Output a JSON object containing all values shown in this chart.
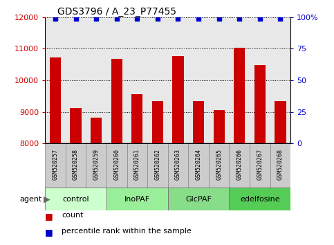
{
  "title": "GDS3796 / A_23_P77455",
  "samples": [
    "GSM520257",
    "GSM520258",
    "GSM520259",
    "GSM520260",
    "GSM520261",
    "GSM520262",
    "GSM520263",
    "GSM520264",
    "GSM520265",
    "GSM520266",
    "GSM520267",
    "GSM520268"
  ],
  "counts": [
    10720,
    9130,
    8820,
    10670,
    9560,
    9330,
    10760,
    9330,
    9050,
    11030,
    10480,
    9330
  ],
  "bar_color": "#cc0000",
  "dot_color": "#0000cc",
  "ylim_left": [
    8000,
    12000
  ],
  "ylim_right": [
    0,
    100
  ],
  "yticks_left": [
    8000,
    9000,
    10000,
    11000,
    12000
  ],
  "yticks_right": [
    0,
    25,
    50,
    75,
    100
  ],
  "ytick_labels_right": [
    "0",
    "25",
    "50",
    "75",
    "100%"
  ],
  "groups": [
    {
      "label": "control",
      "start": 0,
      "end": 3,
      "color": "#ccffcc"
    },
    {
      "label": "InoPAF",
      "start": 3,
      "end": 6,
      "color": "#99ee99"
    },
    {
      "label": "GlcPAF",
      "start": 6,
      "end": 9,
      "color": "#88dd88"
    },
    {
      "label": "edelfosine",
      "start": 9,
      "end": 12,
      "color": "#55cc55"
    }
  ],
  "sample_box_color": "#cccccc",
  "plot_bg_color": "#e8e8e8",
  "bar_width": 0.55,
  "title_fontsize": 10,
  "tick_fontsize": 8,
  "sample_fontsize": 6,
  "group_fontsize": 8
}
